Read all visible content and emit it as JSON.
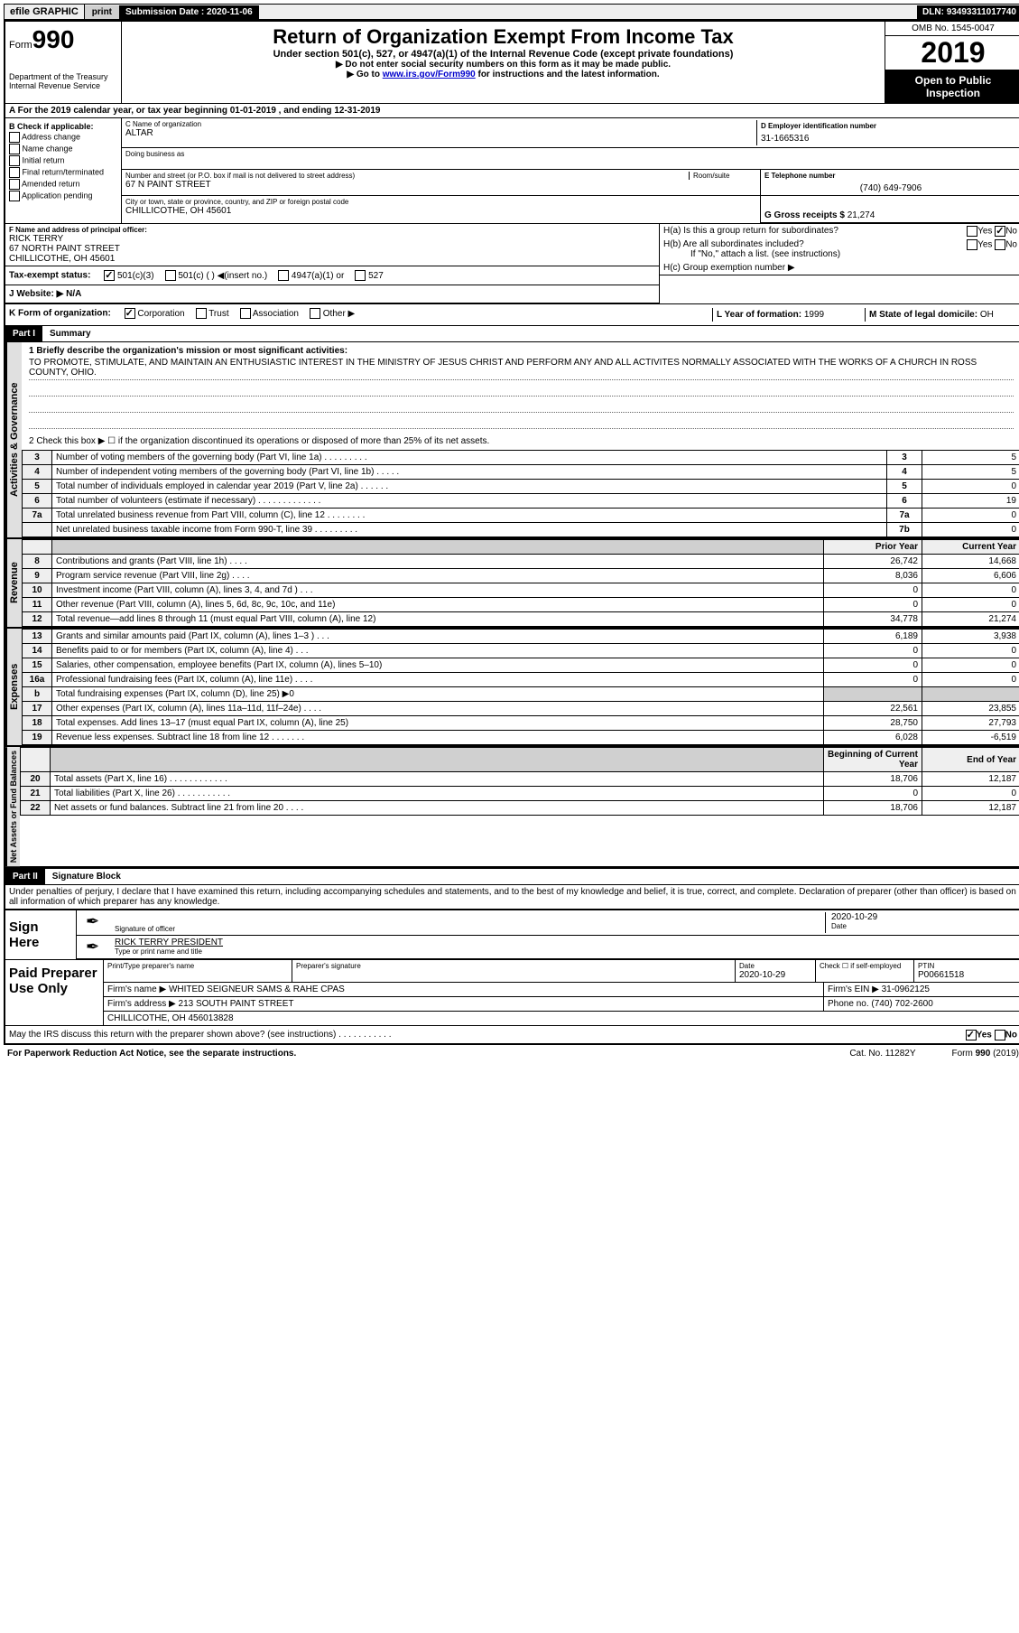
{
  "topbar": {
    "efile": "efile GRAPHIC",
    "print": "print",
    "submission_label": "Submission Date :",
    "submission_date": "2020-11-06",
    "dln_label": "DLN:",
    "dln": "93493311017740"
  },
  "hdr": {
    "form_word": "Form",
    "form_no": "990",
    "dept1": "Department of the Treasury",
    "dept2": "Internal Revenue Service",
    "title": "Return of Organization Exempt From Income Tax",
    "sub": "Under section 501(c), 527, or 4947(a)(1) of the Internal Revenue Code (except private foundations)",
    "note1": "▶ Do not enter social security numbers on this form as it may be made public.",
    "note2_pre": "▶ Go to ",
    "note2_link": "www.irs.gov/Form990",
    "note2_post": " for instructions and the latest information.",
    "omb": "OMB No. 1545-0047",
    "year": "2019",
    "open1": "Open to Public",
    "open2": "Inspection"
  },
  "rowA": "A For the 2019 calendar year, or tax year beginning 01-01-2019   , and ending 12-31-2019",
  "secB": {
    "hdr": "B Check if applicable:",
    "items": [
      "Address change",
      "Name change",
      "Initial return",
      "Final return/terminated",
      "Amended return",
      "Application pending"
    ]
  },
  "secC": {
    "name_lbl": "C Name of organization",
    "name": "ALTAR",
    "dba_lbl": "Doing business as",
    "addr_lbl": "Number and street (or P.O. box if mail is not delivered to street address)",
    "room_lbl": "Room/suite",
    "addr": "67 N PAINT STREET",
    "city_lbl": "City or town, state or province, country, and ZIP or foreign postal code",
    "city": "CHILLICOTHE, OH  45601"
  },
  "secD": {
    "lbl": "D Employer identification number",
    "val": "31-1665316"
  },
  "secE": {
    "lbl": "E Telephone number",
    "val": "(740) 649-7906"
  },
  "secG": {
    "lbl": "G Gross receipts $",
    "val": "21,274"
  },
  "secF": {
    "lbl": "F  Name and address of principal officer:",
    "name": "RICK TERRY",
    "addr1": "67 NORTH PAINT STREET",
    "addr2": "CHILLICOTHE, OH  45601"
  },
  "secH": {
    "a_lbl": "H(a)  Is this a group return for subordinates?",
    "b_lbl": "H(b)  Are all subordinates included?",
    "b_note": "If \"No,\" attach a list. (see instructions)",
    "c_lbl": "H(c)  Group exemption number ▶",
    "yes": "Yes",
    "no": "No",
    "a_no_checked": true
  },
  "secI": {
    "lbl": "Tax-exempt status:",
    "opts": [
      "501(c)(3)",
      "501(c) (   ) ◀(insert no.)",
      "4947(a)(1) or",
      "527"
    ],
    "checked_idx": 0
  },
  "secJ": {
    "lbl": "J  Website: ▶",
    "val": "N/A"
  },
  "secK": {
    "lbl": "K Form of organization:",
    "opts": [
      "Corporation",
      "Trust",
      "Association",
      "Other ▶"
    ],
    "checked_idx": 0
  },
  "secL": {
    "lbl": "L Year of formation:",
    "val": "1999"
  },
  "secM": {
    "lbl": "M State of legal domicile:",
    "val": "OH"
  },
  "part1": {
    "hdr": "Part I",
    "title": "Summary",
    "q1_lbl": "1  Briefly describe the organization's mission or most significant activities:",
    "mission": "TO PROMOTE, STIMULATE, AND MAINTAIN AN ENTHUSIASTIC INTEREST IN THE MINISTRY OF JESUS CHRIST AND PERFORM ANY AND ALL ACTIVITES NORMALLY ASSOCIATED WITH THE WORKS OF A CHURCH IN ROSS COUNTY, OHIO.",
    "q2": "2   Check this box ▶ ☐  if the organization discontinued its operations or disposed of more than 25% of its net assets.",
    "lines_govern": [
      {
        "n": "3",
        "d": "Number of voting members of the governing body (Part VI, line 1a)  .   .   .   .   .   .   .   .   .",
        "r": "3",
        "v": "5"
      },
      {
        "n": "4",
        "d": "Number of independent voting members of the governing body (Part VI, line 1b)  .   .   .   .   .",
        "r": "4",
        "v": "5"
      },
      {
        "n": "5",
        "d": "Total number of individuals employed in calendar year 2019 (Part V, line 2a)  .   .   .   .   .   .",
        "r": "5",
        "v": "0"
      },
      {
        "n": "6",
        "d": "Total number of volunteers (estimate if necessary)   .   .   .   .   .   .   .   .   .   .   .   .   .",
        "r": "6",
        "v": "19"
      },
      {
        "n": "7a",
        "d": "Total unrelated business revenue from Part VIII, column (C), line 12  .   .   .   .   .   .   .   .",
        "r": "7a",
        "v": "0"
      },
      {
        "n": "",
        "d": "Net unrelated business taxable income from Form 990-T, line 39   .   .   .   .   .   .   .   .   .",
        "r": "7b",
        "v": "0"
      }
    ],
    "prior_hdr": "Prior Year",
    "curr_hdr": "Current Year",
    "rev_lines": [
      {
        "n": "8",
        "d": "Contributions and grants (Part VIII, line 1h)   .   .   .   .",
        "p": "26,742",
        "c": "14,668"
      },
      {
        "n": "9",
        "d": "Program service revenue (Part VIII, line 2g)   .   .   .   .",
        "p": "8,036",
        "c": "6,606"
      },
      {
        "n": "10",
        "d": "Investment income (Part VIII, column (A), lines 3, 4, and 7d )   .   .   .",
        "p": "0",
        "c": "0"
      },
      {
        "n": "11",
        "d": "Other revenue (Part VIII, column (A), lines 5, 6d, 8c, 9c, 10c, and 11e)",
        "p": "0",
        "c": "0"
      },
      {
        "n": "12",
        "d": "Total revenue—add lines 8 through 11 (must equal Part VIII, column (A), line 12)",
        "p": "34,778",
        "c": "21,274"
      }
    ],
    "exp_lines": [
      {
        "n": "13",
        "d": "Grants and similar amounts paid (Part IX, column (A), lines 1–3 )  .   .   .",
        "p": "6,189",
        "c": "3,938"
      },
      {
        "n": "14",
        "d": "Benefits paid to or for members (Part IX, column (A), line 4)  .   .   .",
        "p": "0",
        "c": "0"
      },
      {
        "n": "15",
        "d": "Salaries, other compensation, employee benefits (Part IX, column (A), lines 5–10)",
        "p": "0",
        "c": "0"
      },
      {
        "n": "16a",
        "d": "Professional fundraising fees (Part IX, column (A), line 11e)  .   .   .   .",
        "p": "0",
        "c": "0"
      },
      {
        "n": "b",
        "d": "Total fundraising expenses (Part IX, column (D), line 25) ▶0",
        "p": "",
        "c": "",
        "shaded": true
      },
      {
        "n": "17",
        "d": "Other expenses (Part IX, column (A), lines 11a–11d, 11f–24e)  .   .   .   .",
        "p": "22,561",
        "c": "23,855"
      },
      {
        "n": "18",
        "d": "Total expenses. Add lines 13–17 (must equal Part IX, column (A), line 25)",
        "p": "28,750",
        "c": "27,793"
      },
      {
        "n": "19",
        "d": "Revenue less expenses. Subtract line 18 from line 12  .   .   .   .   .   .   .",
        "p": "6,028",
        "c": "-6,519"
      }
    ],
    "bocy_hdr": "Beginning of Current Year",
    "eoy_hdr": "End of Year",
    "net_lines": [
      {
        "n": "20",
        "d": "Total assets (Part X, line 16)  .   .   .   .   .   .   .   .   .   .   .   .",
        "p": "18,706",
        "c": "12,187"
      },
      {
        "n": "21",
        "d": "Total liabilities (Part X, line 26)  .   .   .   .   .   .   .   .   .   .   .",
        "p": "0",
        "c": "0"
      },
      {
        "n": "22",
        "d": "Net assets or fund balances. Subtract line 21 from line 20  .   .   .   .",
        "p": "18,706",
        "c": "12,187"
      }
    ],
    "vlabels": {
      "gov": "Activities & Governance",
      "rev": "Revenue",
      "exp": "Expenses",
      "net": "Net Assets or Fund Balances"
    }
  },
  "part2": {
    "hdr": "Part II",
    "title": "Signature Block",
    "decl": "Under penalties of perjury, I declare that I have examined this return, including accompanying schedules and statements, and to the best of my knowledge and belief, it is true, correct, and complete. Declaration of preparer (other than officer) is based on all information of which preparer has any knowledge.",
    "sign_here": "Sign Here",
    "sig_officer_lbl": "Signature of officer",
    "sig_date_lbl": "Date",
    "sig_date": "2020-10-29",
    "sig_name": "RICK TERRY PRESIDENT",
    "sig_name_lbl": "Type or print name and title",
    "paid_lbl": "Paid Preparer Use Only",
    "paid_hdrs": [
      "Print/Type preparer's name",
      "Preparer's signature",
      "Date",
      "Check ☐ if self-employed",
      "PTIN"
    ],
    "paid_date": "2020-10-29",
    "paid_ptin": "P00661518",
    "firm_name_lbl": "Firm's name   ▶",
    "firm_name": "WHITED SEIGNEUR SAMS & RAHE CPAS",
    "firm_ein_lbl": "Firm's EIN ▶",
    "firm_ein": "31-0962125",
    "firm_addr_lbl": "Firm's address ▶",
    "firm_addr1": "213 SOUTH PAINT STREET",
    "firm_addr2": "CHILLICOTHE, OH  456013828",
    "phone_lbl": "Phone no.",
    "phone": "(740) 702-2600",
    "discuss": "May the IRS discuss this return with the preparer shown above? (see instructions)   .   .   .   .   .   .   .   .   .   .   .",
    "discuss_yes_checked": true
  },
  "footer": {
    "fpra": "For Paperwork Reduction Act Notice, see the separate instructions.",
    "cat": "Cat. No. 11282Y",
    "form": "Form 990 (2019)"
  }
}
